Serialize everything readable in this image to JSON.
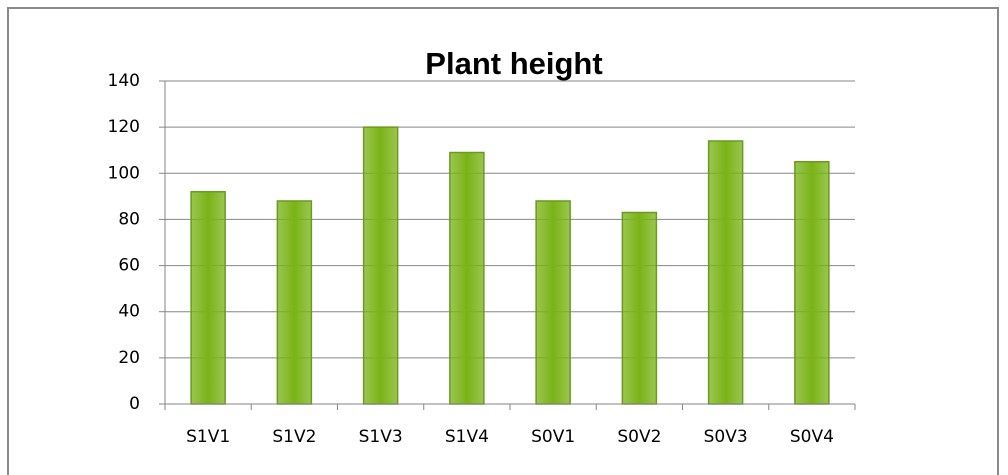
{
  "chart_data": {
    "type": "bar",
    "title": "Plant height",
    "categories": [
      "S1V1",
      "S1V2",
      "S1V3",
      "S1V4",
      "S0V1",
      "S0V2",
      "S0V3",
      "S0V4"
    ],
    "values": [
      92,
      88,
      120,
      109,
      88,
      83,
      114,
      105
    ],
    "color": "#7ab317",
    "ylim": [
      0,
      140
    ],
    "yticks": [
      0,
      20,
      40,
      60,
      80,
      100,
      120,
      140
    ],
    "grid": true
  }
}
